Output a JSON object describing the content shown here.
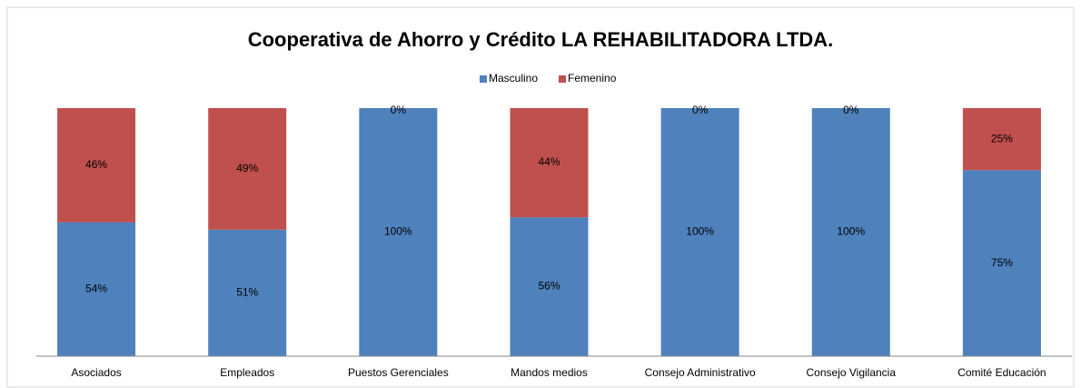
{
  "chart_data": {
    "type": "stacked_bar",
    "title": "Cooperativa de Ahorro y Crédito  LA REHABILITADORA LTDA.",
    "categories": [
      "Asociados",
      "Empleados",
      "Puestos Gerenciales",
      "Mandos medios",
      "Consejo Administrativo",
      "Consejo Vigilancia",
      "Comité Educación"
    ],
    "series": [
      {
        "name": "Masculino",
        "color": "#4f81bd",
        "values": [
          54,
          51,
          100,
          56,
          100,
          100,
          75
        ],
        "value_labels": [
          "54%",
          "51%",
          "100%",
          "56%",
          "100%",
          "100%",
          "75%"
        ]
      },
      {
        "name": "Femenino",
        "color": "#c0504d",
        "values": [
          46,
          49,
          0,
          44,
          0,
          0,
          25
        ],
        "value_labels": [
          "46%",
          "49%",
          "0%",
          "44%",
          "0%",
          "0%",
          "25%"
        ]
      }
    ],
    "ylim": [
      0,
      100
    ],
    "legend": "top"
  }
}
